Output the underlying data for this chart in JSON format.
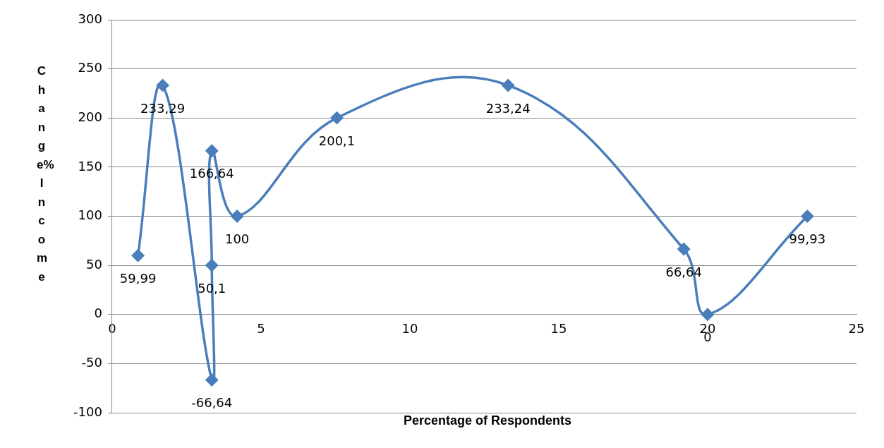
{
  "chart_data": {
    "type": "line",
    "xlabel": "Percentage of Respondents",
    "ylabel": "Change% Income",
    "x": [
      0.87,
      1.7,
      3.35,
      3.35,
      3.35,
      4.2,
      7.55,
      13.3,
      19.2,
      20,
      23.35
    ],
    "series": [
      {
        "color": "#4a7ebb",
        "values": [
          59.99,
          233.29,
          -66.64,
          50.1,
          166.64,
          100,
          200.1,
          233.24,
          66.64,
          0,
          99.93
        ],
        "value_labels": [
          "59,99",
          "233,29",
          "-66,64",
          "50,1",
          "166,64",
          "100",
          "200,1",
          "233,24",
          "66,64",
          "0",
          "99,93"
        ]
      }
    ],
    "xlim": [
      0,
      25
    ],
    "xticks": [
      0,
      5,
      10,
      15,
      20,
      25
    ],
    "ylim": [
      -100,
      300
    ],
    "yticks": [
      -100,
      -50,
      0,
      50,
      100,
      150,
      200,
      250,
      300
    ],
    "grid": "y",
    "legend": false,
    "marker": "diamond",
    "line_style": "solid"
  }
}
